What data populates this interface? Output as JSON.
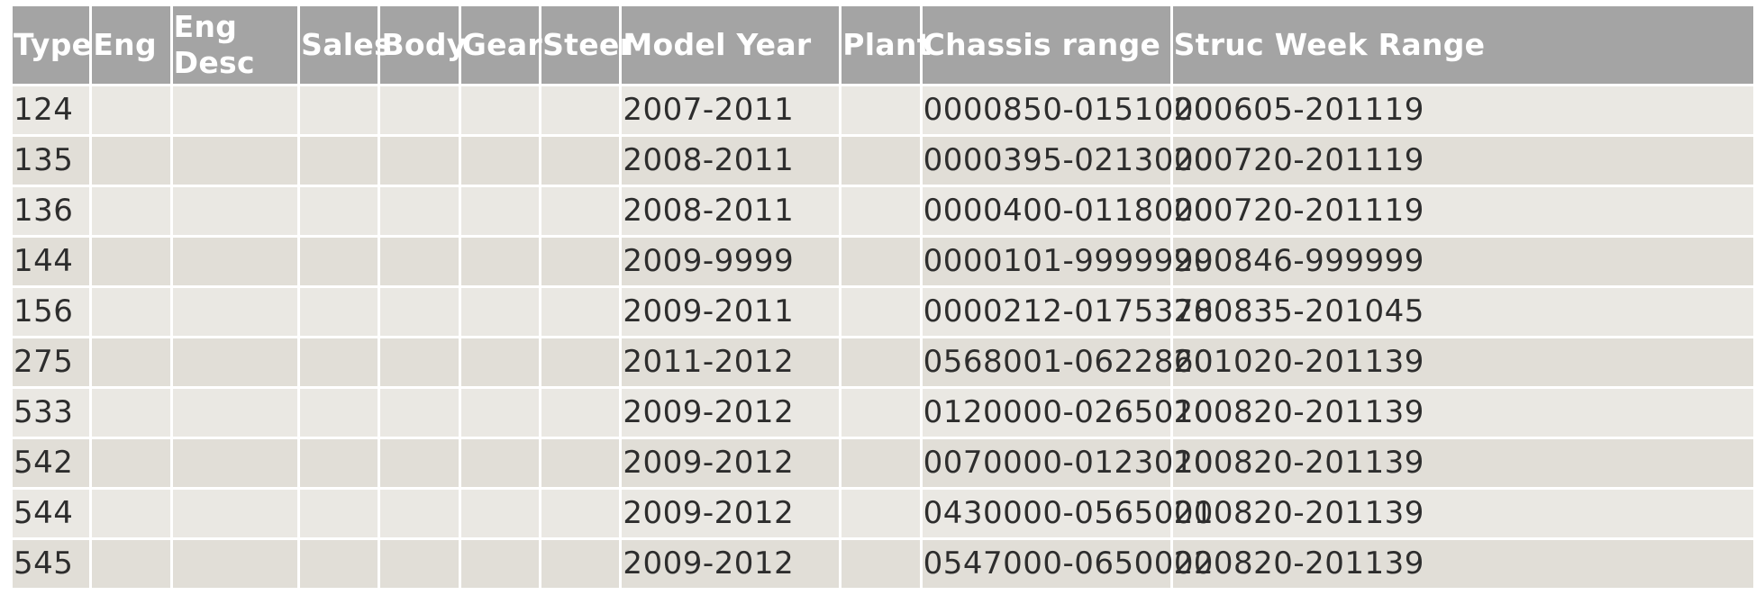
{
  "table": {
    "headers": [
      "Type",
      "Eng",
      "Eng Desc",
      "Sales",
      "Body",
      "Gear",
      "Steer",
      "Model Year",
      "Plant",
      "Chassis range",
      "Struc Week Range"
    ],
    "rows": [
      {
        "type": "124",
        "eng": "",
        "eng_desc": "",
        "sales": "",
        "body": "",
        "gear": "",
        "steer": "",
        "model_year": "2007-2011",
        "plant": "",
        "chassis_range": "0000850-0151000",
        "struc_week_range": "200605-201119"
      },
      {
        "type": "135",
        "eng": "",
        "eng_desc": "",
        "sales": "",
        "body": "",
        "gear": "",
        "steer": "",
        "model_year": "2008-2011",
        "plant": "",
        "chassis_range": "0000395-0213000",
        "struc_week_range": "200720-201119"
      },
      {
        "type": "136",
        "eng": "",
        "eng_desc": "",
        "sales": "",
        "body": "",
        "gear": "",
        "steer": "",
        "model_year": "2008-2011",
        "plant": "",
        "chassis_range": "0000400-0118000",
        "struc_week_range": "200720-201119"
      },
      {
        "type": "144",
        "eng": "",
        "eng_desc": "",
        "sales": "",
        "body": "",
        "gear": "",
        "steer": "",
        "model_year": "2009-9999",
        "plant": "",
        "chassis_range": "0000101-9999999",
        "struc_week_range": "200846-999999"
      },
      {
        "type": "156",
        "eng": "",
        "eng_desc": "",
        "sales": "",
        "body": "",
        "gear": "",
        "steer": "",
        "model_year": "2009-2011",
        "plant": "",
        "chassis_range": "0000212-0175378",
        "struc_week_range": "200835-201045"
      },
      {
        "type": "275",
        "eng": "",
        "eng_desc": "",
        "sales": "",
        "body": "",
        "gear": "",
        "steer": "",
        "model_year": "2011-2012",
        "plant": "",
        "chassis_range": "0568001-0622860",
        "struc_week_range": "201020-201139"
      },
      {
        "type": "533",
        "eng": "",
        "eng_desc": "",
        "sales": "",
        "body": "",
        "gear": "",
        "steer": "",
        "model_year": "2009-2012",
        "plant": "",
        "chassis_range": "0120000-0265010",
        "struc_week_range": "200820-201139"
      },
      {
        "type": "542",
        "eng": "",
        "eng_desc": "",
        "sales": "",
        "body": "",
        "gear": "",
        "steer": "",
        "model_year": "2009-2012",
        "plant": "",
        "chassis_range": "0070000-0123010",
        "struc_week_range": "200820-201139"
      },
      {
        "type": "544",
        "eng": "",
        "eng_desc": "",
        "sales": "",
        "body": "",
        "gear": "",
        "steer": "",
        "model_year": "2009-2012",
        "plant": "",
        "chassis_range": "0430000-0565001",
        "struc_week_range": "200820-201139"
      },
      {
        "type": "545",
        "eng": "",
        "eng_desc": "",
        "sales": "",
        "body": "",
        "gear": "",
        "steer": "",
        "model_year": "2009-2012",
        "plant": "",
        "chassis_range": "0547000-0650002",
        "struc_week_range": "200820-201139"
      }
    ]
  },
  "colors": {
    "header_bg": "#a4a4a4",
    "header_text": "#ffffff",
    "row_odd_bg": "#eae8e3",
    "row_even_bg": "#e1ded7",
    "cell_text": "#2d2d2d",
    "grid_lines": "#ffffff"
  }
}
